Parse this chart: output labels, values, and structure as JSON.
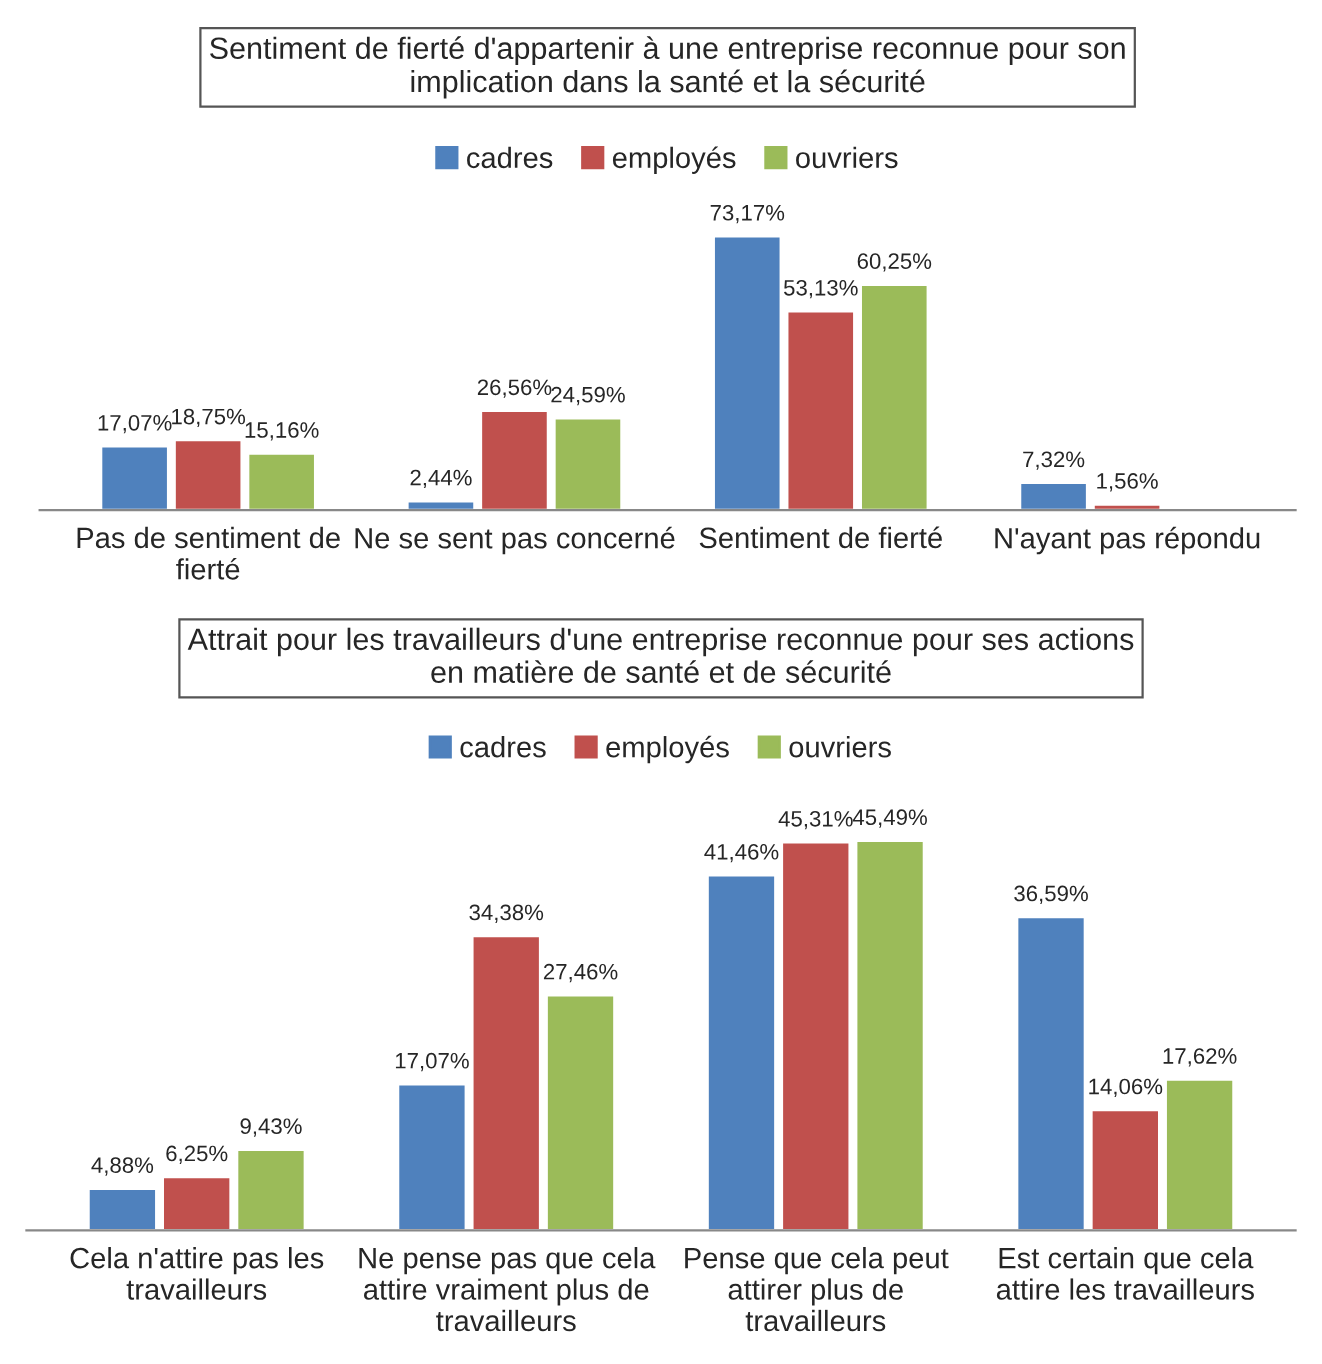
{
  "chart_data": [
    {
      "type": "bar",
      "title": "Sentiment de fierté d'appartenir à une entreprise reconnue pour son\nimplication dans la santé et la sécurité",
      "categories": [
        "Pas de sentiment de\nfierté",
        "Ne se sent pas concerné",
        "Sentiment de fierté",
        "N'ayant pas répondu"
      ],
      "series": [
        {
          "name": "cadres",
          "color": "#4f81bd",
          "values": [
            17.07,
            2.44,
            73.17,
            7.32
          ],
          "value_labels": [
            "17,07%",
            "2,44%",
            "73,17%",
            "7,32%"
          ]
        },
        {
          "name": "employés",
          "color": "#c0504d",
          "values": [
            18.75,
            26.56,
            53.13,
            1.56
          ],
          "value_labels": [
            "18,75%",
            "26,56%",
            "53,13%",
            "1,56%"
          ]
        },
        {
          "name": "ouvriers",
          "color": "#9bbb59",
          "values": [
            15.16,
            24.59,
            60.25,
            null
          ],
          "value_labels": [
            "15,16%",
            "24,59%",
            "60,25%",
            null
          ]
        }
      ],
      "legend": "top",
      "grid": false,
      "tick_labels": "x"
    },
    {
      "type": "bar",
      "title": "Attrait pour les travailleurs d'une entreprise reconnue pour ses actions\nen matière de santé et de sécurité",
      "categories": [
        "Cela n'attire pas les\ntravailleurs",
        "Ne pense pas que cela\nattire vraiment plus de\ntravailleurs",
        "Pense que cela peut\nattirer plus de\ntravailleurs",
        "Est certain que cela\nattire les travailleurs"
      ],
      "series": [
        {
          "name": "cadres",
          "color": "#4f81bd",
          "values": [
            4.88,
            17.07,
            41.46,
            36.59
          ],
          "value_labels": [
            "4,88%",
            "17,07%",
            "41,46%",
            "36,59%"
          ]
        },
        {
          "name": "employés",
          "color": "#c0504d",
          "values": [
            6.25,
            34.38,
            45.31,
            14.06
          ],
          "value_labels": [
            "6,25%",
            "34,38%",
            "45,31%",
            "14,06%"
          ]
        },
        {
          "name": "ouvriers",
          "color": "#9bbb59",
          "values": [
            9.43,
            27.46,
            45.49,
            17.62
          ],
          "value_labels": [
            "9,43%",
            "27,46%",
            "45,49%",
            "17,62%"
          ]
        }
      ],
      "legend": "top",
      "grid": false,
      "tick_labels": "x"
    }
  ]
}
